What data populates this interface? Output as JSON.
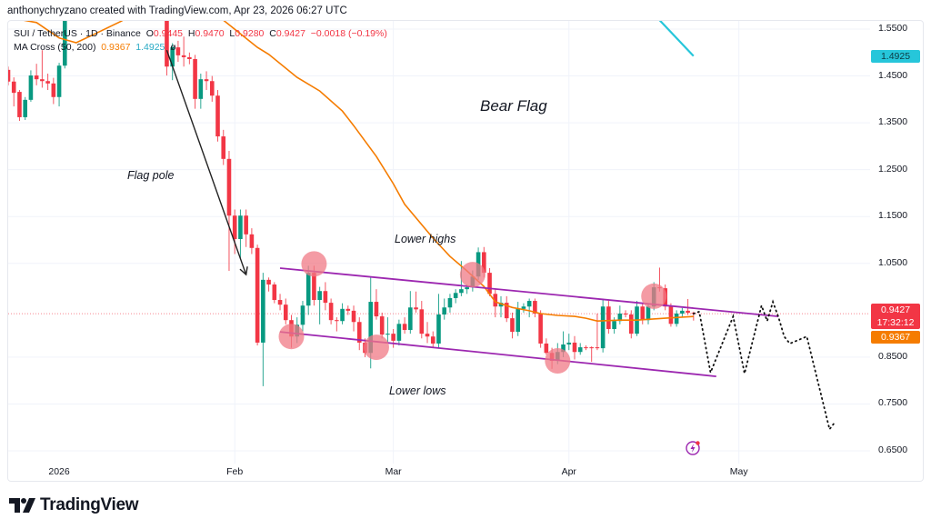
{
  "credit": "anthonychryzano created with TradingView.com, Apr 23, 2026 06:27 UTC",
  "legend": {
    "symbol": "SUI / TetherUS · 1D · Binance",
    "o_label": "O",
    "o": "0.9445",
    "h_label": "H",
    "h": "0.9470",
    "l_label": "L",
    "l": "0.9280",
    "c_label": "C",
    "c": "0.9427",
    "change": "−0.0018 (−0.19%)",
    "ma_name": "MA Cross (50, 200)",
    "ma50": "0.9367",
    "ma200": "1.4925",
    "eye": "ø"
  },
  "price_axis": {
    "labels": [
      "1.5500",
      "1.4500",
      "1.3500",
      "1.2500",
      "1.1500",
      "1.0500",
      "0.8500",
      "0.7500",
      "0.6500"
    ],
    "tag_ma200": "1.4925",
    "tag_last": "0.9427",
    "tag_countdown": "17:32:12",
    "tag_ma50": "0.9367"
  },
  "time_axis": {
    "labels": [
      "2026",
      "Feb",
      "Mar",
      "Apr",
      "May"
    ]
  },
  "annotations": {
    "bear_flag": "Bear Flag",
    "flag_pole": "Flag pole",
    "lower_highs": "Lower highs",
    "lower_lows": "Lower lows"
  },
  "logo": "TradingView",
  "colors": {
    "up": "#089981",
    "down": "#f23645",
    "ma50": "#f57c00",
    "ma200": "#26c6da",
    "channel": "#9c27b0",
    "highlight": "#f07a85",
    "arrow": "#222222",
    "projection": "#111111"
  },
  "chart_data": {
    "type": "candlestick",
    "title": "SUI / TetherUS · 1D · Binance",
    "ylim": [
      0.62,
      1.575
    ],
    "y_ticks": [
      1.55,
      1.45,
      1.35,
      1.25,
      1.15,
      1.05,
      0.85,
      0.75,
      0.65
    ],
    "x_ticks": [
      [
        "2026-01-01",
        "2026"
      ],
      [
        "2026-02-01",
        "Feb"
      ],
      [
        "2026-03-01",
        "Mar"
      ],
      [
        "2026-04-01",
        "Apr"
      ],
      [
        "2026-05-01",
        "May"
      ]
    ],
    "last_price": 0.9427,
    "grid": true,
    "candles_fields": [
      "date",
      "open",
      "high",
      "low",
      "close"
    ],
    "candles": [
      [
        "2025-12-23",
        1.463,
        1.47,
        1.43,
        1.438
      ],
      [
        "2025-12-24",
        1.438,
        1.447,
        1.385,
        1.414
      ],
      [
        "2025-12-25",
        1.416,
        1.42,
        1.354,
        1.362
      ],
      [
        "2025-12-26",
        1.362,
        1.405,
        1.356,
        1.399
      ],
      [
        "2025-12-27",
        1.399,
        1.462,
        1.395,
        1.451
      ],
      [
        "2025-12-28",
        1.451,
        1.476,
        1.43,
        1.443
      ],
      [
        "2025-12-29",
        1.443,
        1.505,
        1.425,
        1.439
      ],
      [
        "2025-12-30",
        1.439,
        1.455,
        1.42,
        1.434
      ],
      [
        "2025-12-31",
        1.434,
        1.446,
        1.39,
        1.405
      ],
      [
        "2026-01-01",
        1.405,
        1.478,
        1.385,
        1.472
      ],
      [
        "2026-01-02",
        1.472,
        1.62,
        1.466,
        1.6
      ],
      [
        "2026-01-20",
        1.62,
        1.65,
        1.451,
        1.47
      ],
      [
        "2026-01-21",
        1.47,
        1.52,
        1.441,
        1.511
      ],
      [
        "2026-01-22",
        1.511,
        1.525,
        1.48,
        1.494
      ],
      [
        "2026-01-23",
        1.494,
        1.534,
        1.47,
        1.49
      ],
      [
        "2026-01-24",
        1.49,
        1.5,
        1.475,
        1.486
      ],
      [
        "2026-01-25",
        1.486,
        1.495,
        1.38,
        1.401
      ],
      [
        "2026-01-26",
        1.401,
        1.455,
        1.38,
        1.443
      ],
      [
        "2026-01-27",
        1.443,
        1.46,
        1.42,
        1.439
      ],
      [
        "2026-01-28",
        1.439,
        1.45,
        1.395,
        1.408
      ],
      [
        "2026-01-29",
        1.408,
        1.42,
        1.31,
        1.321
      ],
      [
        "2026-01-30",
        1.321,
        1.335,
        1.26,
        1.273
      ],
      [
        "2026-01-31",
        1.273,
        1.29,
        1.034,
        1.152
      ],
      [
        "2026-02-01",
        1.152,
        1.165,
        1.07,
        1.102
      ],
      [
        "2026-02-02",
        1.102,
        1.165,
        1.06,
        1.152
      ],
      [
        "2026-02-03",
        1.152,
        1.165,
        1.085,
        1.112
      ],
      [
        "2026-02-04",
        1.112,
        1.125,
        1.07,
        1.083
      ],
      [
        "2026-02-05",
        1.083,
        1.09,
        0.875,
        0.881
      ],
      [
        "2026-02-06",
        0.881,
        1.03,
        0.788,
        1.015
      ],
      [
        "2026-02-07",
        1.015,
        1.02,
        0.99,
        1.005
      ],
      [
        "2026-02-08",
        1.005,
        1.01,
        0.965,
        0.972
      ],
      [
        "2026-02-09",
        0.972,
        0.985,
        0.95,
        0.962
      ],
      [
        "2026-02-10",
        0.962,
        0.975,
        0.92,
        0.929
      ],
      [
        "2026-02-11",
        0.929,
        0.94,
        0.87,
        0.894
      ],
      [
        "2026-02-12",
        0.894,
        0.935,
        0.88,
        0.919
      ],
      [
        "2026-02-13",
        0.919,
        0.97,
        0.905,
        0.96
      ],
      [
        "2026-02-14",
        0.96,
        1.045,
        0.94,
        1.03
      ],
      [
        "2026-02-15",
        1.03,
        1.045,
        0.96,
        0.972
      ],
      [
        "2026-02-16",
        0.972,
        1.0,
        0.92,
        0.991
      ],
      [
        "2026-02-17",
        0.991,
        1.01,
        0.95,
        0.966
      ],
      [
        "2026-02-18",
        0.966,
        0.975,
        0.92,
        0.929
      ],
      [
        "2026-02-19",
        0.929,
        0.935,
        0.905,
        0.927
      ],
      [
        "2026-02-20",
        0.927,
        0.965,
        0.92,
        0.953
      ],
      [
        "2026-02-21",
        0.953,
        0.96,
        0.94,
        0.949
      ],
      [
        "2026-02-22",
        0.949,
        0.96,
        0.905,
        0.925
      ],
      [
        "2026-02-23",
        0.925,
        0.935,
        0.865,
        0.881
      ],
      [
        "2026-02-24",
        0.881,
        0.89,
        0.85,
        0.859
      ],
      [
        "2026-02-25",
        0.859,
        1.022,
        0.826,
        0.968
      ],
      [
        "2026-02-26",
        0.968,
        0.995,
        0.93,
        0.937
      ],
      [
        "2026-02-27",
        0.937,
        0.945,
        0.89,
        0.898
      ],
      [
        "2026-02-28",
        0.898,
        0.935,
        0.88,
        0.9
      ],
      [
        "2026-03-01",
        0.9,
        0.91,
        0.87,
        0.885
      ],
      [
        "2026-03-02",
        0.885,
        0.93,
        0.875,
        0.921
      ],
      [
        "2026-03-03",
        0.921,
        0.935,
        0.9,
        0.908
      ],
      [
        "2026-03-04",
        0.908,
        0.991,
        0.9,
        0.956
      ],
      [
        "2026-03-05",
        0.956,
        0.99,
        0.945,
        0.952
      ],
      [
        "2026-03-06",
        0.952,
        0.97,
        0.89,
        0.9
      ],
      [
        "2026-03-07",
        0.9,
        0.925,
        0.88,
        0.894
      ],
      [
        "2026-03-08",
        0.894,
        0.905,
        0.87,
        0.879
      ],
      [
        "2026-03-09",
        0.879,
        0.985,
        0.87,
        0.941
      ],
      [
        "2026-03-10",
        0.941,
        0.975,
        0.93,
        0.956
      ],
      [
        "2026-03-11",
        0.956,
        0.985,
        0.945,
        0.976
      ],
      [
        "2026-03-12",
        0.976,
        0.995,
        0.965,
        0.987
      ],
      [
        "2026-03-13",
        0.987,
        1.055,
        0.98,
        0.995
      ],
      [
        "2026-03-14",
        0.995,
        1.005,
        0.985,
        0.999
      ],
      [
        "2026-03-15",
        0.999,
        1.035,
        0.99,
        1.022
      ],
      [
        "2026-03-16",
        1.022,
        1.084,
        1.015,
        1.074
      ],
      [
        "2026-03-17",
        1.074,
        1.085,
        1.02,
        1.03
      ],
      [
        "2026-03-18",
        1.03,
        1.04,
        0.98,
        0.985
      ],
      [
        "2026-03-19",
        0.985,
        0.995,
        0.935,
        0.958
      ],
      [
        "2026-03-20",
        0.958,
        0.98,
        0.935,
        0.966
      ],
      [
        "2026-03-21",
        0.966,
        0.98,
        0.925,
        0.933
      ],
      [
        "2026-03-22",
        0.933,
        0.945,
        0.89,
        0.904
      ],
      [
        "2026-03-23",
        0.904,
        0.968,
        0.895,
        0.953
      ],
      [
        "2026-03-24",
        0.953,
        0.965,
        0.945,
        0.958
      ],
      [
        "2026-03-25",
        0.958,
        0.975,
        0.935,
        0.97
      ],
      [
        "2026-03-26",
        0.97,
        0.975,
        0.935,
        0.943
      ],
      [
        "2026-03-27",
        0.943,
        0.95,
        0.87,
        0.879
      ],
      [
        "2026-03-28",
        0.879,
        0.89,
        0.855,
        0.859
      ],
      [
        "2026-03-29",
        0.859,
        0.87,
        0.825,
        0.842
      ],
      [
        "2026-03-30",
        0.842,
        0.88,
        0.835,
        0.861
      ],
      [
        "2026-03-31",
        0.861,
        0.905,
        0.85,
        0.877
      ],
      [
        "2026-04-01",
        0.877,
        0.9,
        0.865,
        0.881
      ],
      [
        "2026-04-02",
        0.881,
        0.895,
        0.845,
        0.861
      ],
      [
        "2026-04-03",
        0.861,
        0.88,
        0.855,
        0.871
      ],
      [
        "2026-04-04",
        0.871,
        0.875,
        0.865,
        0.87
      ],
      [
        "2026-04-05",
        0.871,
        0.873,
        0.84,
        0.869
      ],
      [
        "2026-04-06",
        0.871,
        0.943,
        0.865,
        0.869
      ],
      [
        "2026-04-07",
        0.869,
        0.975,
        0.86,
        0.958
      ],
      [
        "2026-04-08",
        0.958,
        0.97,
        0.9,
        0.91
      ],
      [
        "2026-04-09",
        0.91,
        0.935,
        0.9,
        0.927
      ],
      [
        "2026-04-10",
        0.927,
        0.96,
        0.92,
        0.943
      ],
      [
        "2026-04-11",
        0.943,
        0.95,
        0.935,
        0.941
      ],
      [
        "2026-04-12",
        0.941,
        0.95,
        0.89,
        0.9
      ],
      [
        "2026-04-13",
        0.9,
        0.97,
        0.895,
        0.958
      ],
      [
        "2026-04-14",
        0.958,
        0.965,
        0.92,
        0.929
      ],
      [
        "2026-04-15",
        0.929,
        0.965,
        0.92,
        0.958
      ],
      [
        "2026-04-16",
        0.958,
        1.01,
        0.95,
        0.999
      ],
      [
        "2026-04-17",
        0.999,
        1.041,
        0.99,
        0.997
      ],
      [
        "2026-04-18",
        0.997,
        1.005,
        0.95,
        0.958
      ],
      [
        "2026-04-19",
        0.958,
        0.965,
        0.915,
        0.921
      ],
      [
        "2026-04-20",
        0.921,
        0.95,
        0.915,
        0.943
      ],
      [
        "2026-04-21",
        0.943,
        0.955,
        0.935,
        0.949
      ],
      [
        "2026-04-22",
        0.949,
        0.974,
        0.94,
        0.9445
      ],
      [
        "2026-04-23",
        0.9445,
        0.947,
        0.928,
        0.9427
      ]
    ],
    "series": [
      {
        "name": "MA 50",
        "segments": [
          [
            [
              "2025-12-23",
              1.575
            ],
            [
              "2025-12-28",
              1.564
            ],
            [
              "2026-01-01",
              1.531
            ],
            [
              "2026-01-04",
              1.521
            ],
            [
              "2026-01-07",
              1.538
            ],
            [
              "2026-01-12",
              1.567
            ],
            [
              "2026-01-13",
              1.575
            ]
          ],
          [
            [
              "2026-01-29",
              1.575
            ],
            [
              "2026-01-30",
              1.569
            ],
            [
              "2026-02-05",
              1.511
            ],
            [
              "2026-02-07",
              1.496
            ],
            [
              "2026-02-12",
              1.447
            ],
            [
              "2026-02-16",
              1.418
            ],
            [
              "2026-02-20",
              1.375
            ],
            [
              "2026-02-22",
              1.344
            ],
            [
              "2026-02-26",
              1.278
            ],
            [
              "2026-03-01",
              1.22
            ],
            [
              "2026-03-03",
              1.176
            ],
            [
              "2026-03-08",
              1.104
            ],
            [
              "2026-03-11",
              1.065
            ],
            [
              "2026-03-14",
              1.034
            ],
            [
              "2026-03-17",
              1.001
            ],
            [
              "2026-03-19",
              0.968
            ],
            [
              "2026-03-22",
              0.956
            ],
            [
              "2026-03-25",
              0.949
            ],
            [
              "2026-03-27",
              0.943
            ],
            [
              "2026-03-30",
              0.939
            ],
            [
              "2026-04-02",
              0.937
            ],
            [
              "2026-04-04",
              0.933
            ],
            [
              "2026-04-06",
              0.927
            ],
            [
              "2026-04-10",
              0.929
            ],
            [
              "2026-04-13",
              0.929
            ],
            [
              "2026-04-18",
              0.933
            ],
            [
              "2026-04-23",
              0.9367
            ]
          ]
        ]
      },
      {
        "name": "MA 200",
        "segments": [
          [
            [
              "2026-04-17",
              1.569
            ],
            [
              "2026-04-23",
              1.4925
            ]
          ]
        ]
      }
    ],
    "drawings": {
      "flag_pole_arrow": [
        [
          "2026-01-20",
          1.505
        ],
        [
          "2026-02-03",
          1.026
        ]
      ],
      "channel_upper": [
        [
          "2026-02-09",
          1.04
        ],
        [
          "2026-05-08",
          0.937
        ]
      ],
      "channel_lower": [
        [
          "2026-02-09",
          0.904
        ],
        [
          "2026-04-27",
          0.809
        ]
      ],
      "highlight_points": [
        [
          "2026-02-15",
          1.049
        ],
        [
          "2026-02-11",
          0.894
        ],
        [
          "2026-02-26",
          0.871
        ],
        [
          "2026-03-15",
          1.026
        ],
        [
          "2026-03-30",
          0.842
        ],
        [
          "2026-04-16",
          0.98
        ]
      ],
      "projection_path": [
        [
          "2026-04-23",
          0.9427
        ],
        [
          "2026-04-24",
          0.947
        ],
        [
          "2026-04-26",
          0.817
        ],
        [
          "2026-04-30",
          0.937
        ],
        [
          "2026-05-02",
          0.815
        ],
        [
          "2026-05-05",
          0.96
        ],
        [
          "2026-05-06",
          0.927
        ],
        [
          "2026-05-07",
          0.968
        ],
        [
          "2026-05-08",
          0.935
        ],
        [
          "2026-05-09",
          0.894
        ],
        [
          "2026-05-10",
          0.879
        ],
        [
          "2026-05-13",
          0.894
        ],
        [
          "2026-05-17",
          0.696
        ],
        [
          "2026-05-18",
          0.712
        ]
      ]
    }
  }
}
